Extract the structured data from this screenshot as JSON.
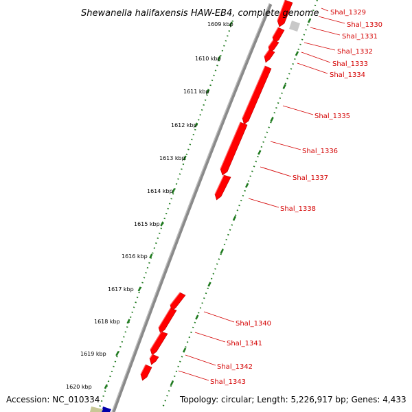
{
  "title": "Shewanella halifaxensis HAW-EB4, complete genome",
  "accession": "Accession: NC_010334",
  "topology": "Topology: circular; Length: 5,226,917 bp; Genes: 4,433",
  "colors": {
    "backbone": "#8a8a8a",
    "gene": "#ff0000",
    "gene_label": "#d40000",
    "tick": "#1f7a1f",
    "faded_gene": "#c8c8c8",
    "blue_gene": "#0000aa",
    "olive_gene": "#c8c896"
  },
  "kbp_ticks": [
    "1609 kbp",
    "1610 kbp",
    "1611 kbp",
    "1612 kbp",
    "1613 kbp",
    "1614 kbp",
    "1615 kbp",
    "1616 kbp",
    "1617 kbp",
    "1618 kbp",
    "1619 kbp",
    "1620 kbp"
  ],
  "genes": [
    {
      "label": "Shal_1329"
    },
    {
      "label": "Shal_1330"
    },
    {
      "label": "Shal_1331"
    },
    {
      "label": "Shal_1332"
    },
    {
      "label": "Shal_1333"
    },
    {
      "label": "Shal_1334"
    },
    {
      "label": "Shal_1335"
    },
    {
      "label": "Shal_1336"
    },
    {
      "label": "Shal_1337"
    },
    {
      "label": "Shal_1338"
    },
    {
      "label": "Shal_1340"
    },
    {
      "label": "Shal_1341"
    },
    {
      "label": "Shal_1342"
    },
    {
      "label": "Shal_1343"
    }
  ]
}
